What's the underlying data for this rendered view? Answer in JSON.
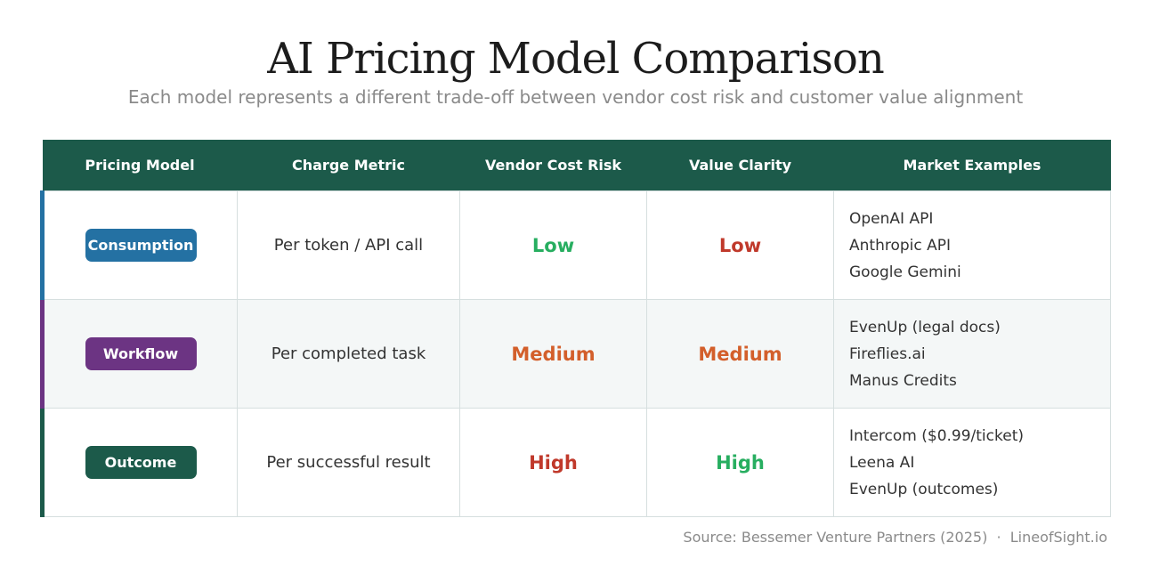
{
  "title": "AI Pricing Model Comparison",
  "subtitle": "Each model represents a different trade-off between vendor cost risk and customer value alignment",
  "headers": [
    "Pricing Model",
    "Charge Metric",
    "Vendor Cost Risk",
    "Value Clarity",
    "Market Examples"
  ],
  "rows": [
    {
      "model": "Consumption",
      "color": "#2471a3",
      "metric": "Per token / API call",
      "risk": "Low",
      "risk_color": "#27ae60",
      "clarity": "Low",
      "clarity_color": "#c0392b",
      "examples": [
        "OpenAI API",
        "Anthropic API",
        "Google Gemini"
      ]
    },
    {
      "model": "Workflow",
      "color": "#6c3483",
      "metric": "Per completed task",
      "risk": "Medium",
      "risk_color": "#d35f2b",
      "clarity": "Medium",
      "clarity_color": "#d35f2b",
      "examples": [
        "EvenUp (legal docs)",
        "Fireflies.ai",
        "Manus Credits"
      ]
    },
    {
      "model": "Outcome",
      "color": "#1c5a4a",
      "metric": "Per successful result",
      "risk": "High",
      "risk_color": "#c0392b",
      "clarity": "High",
      "clarity_color": "#27ae60",
      "examples": [
        "Intercom ($0.99/ticket)",
        "Leena AI",
        "EvenUp (outcomes)"
      ]
    }
  ],
  "source": "Source: Bessemer Venture Partners (2025)  ·  LineofSight.io"
}
